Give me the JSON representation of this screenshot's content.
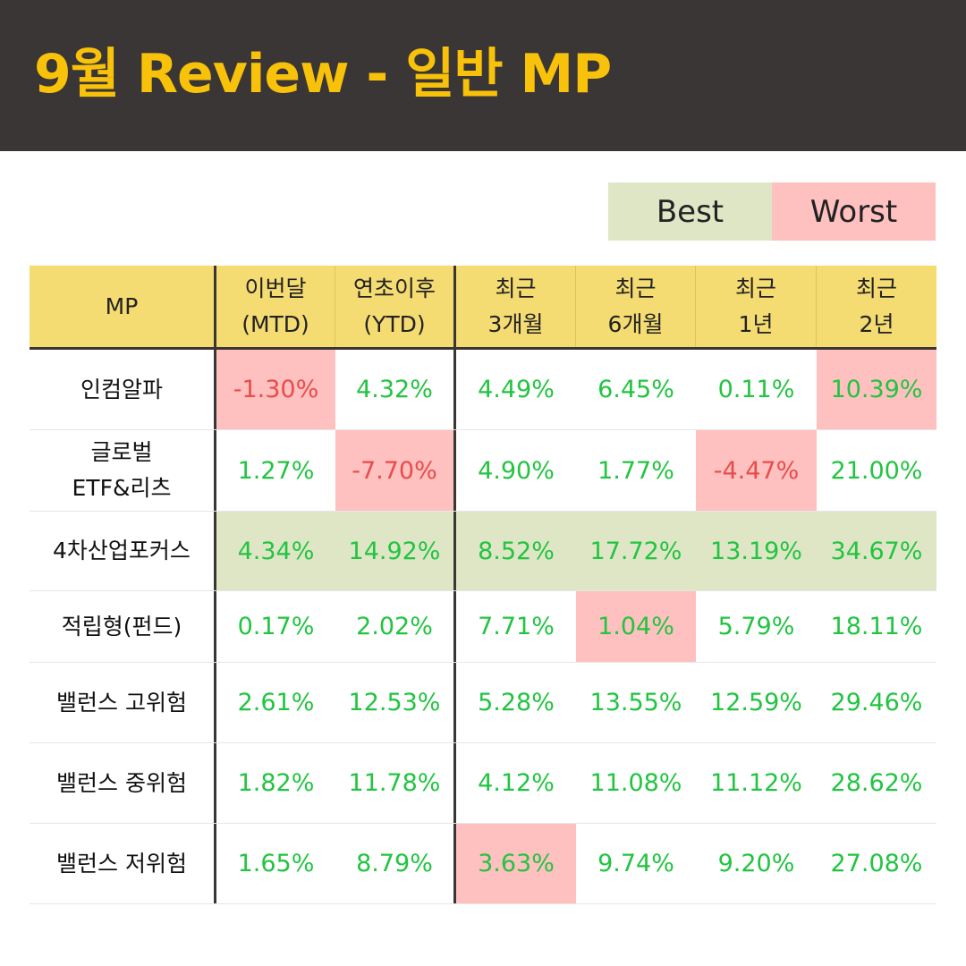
{
  "title": "9월 Review - 일반 MP",
  "legend": {
    "best": "Best",
    "worst": "Worst"
  },
  "colors": {
    "header_bg": "#3a3635",
    "title": "#f9c20a",
    "best": "#dfe6c6",
    "worst": "#ffc0c0",
    "table_header": "#f4dc72",
    "positive_text": "#22c441",
    "negative_text": "#e84c4c"
  },
  "table": {
    "headers": [
      [
        "MP"
      ],
      [
        "이번달",
        "(MTD)"
      ],
      [
        "연초이후",
        "(YTD)"
      ],
      [
        "최근",
        "3개월"
      ],
      [
        "최근",
        "6개월"
      ],
      [
        "최근",
        "1년"
      ],
      [
        "최근",
        "2년"
      ]
    ],
    "rows": [
      {
        "name": [
          "인컴알파"
        ],
        "values": [
          "-1.30%",
          "4.32%",
          "4.49%",
          "6.45%",
          "0.11%",
          "10.39%"
        ],
        "worst": [
          0,
          5
        ],
        "best_row": false
      },
      {
        "name": [
          "글로벌",
          "ETF&리츠"
        ],
        "values": [
          "1.27%",
          "-7.70%",
          "4.90%",
          "1.77%",
          "-4.47%",
          "21.00%"
        ],
        "worst": [
          1,
          4
        ],
        "best_row": false
      },
      {
        "name": [
          "4차산업포커스"
        ],
        "values": [
          "4.34%",
          "14.92%",
          "8.52%",
          "17.72%",
          "13.19%",
          "34.67%"
        ],
        "worst": [],
        "best_row": true
      },
      {
        "name": [
          "적립형(펀드)"
        ],
        "values": [
          "0.17%",
          "2.02%",
          "7.71%",
          "1.04%",
          "5.79%",
          "18.11%"
        ],
        "worst": [
          3
        ],
        "best_row": false
      },
      {
        "name": [
          "밸런스 고위험"
        ],
        "values": [
          "2.61%",
          "12.53%",
          "5.28%",
          "13.55%",
          "12.59%",
          "29.46%"
        ],
        "worst": [],
        "best_row": false
      },
      {
        "name": [
          "밸런스 중위험"
        ],
        "values": [
          "1.82%",
          "11.78%",
          "4.12%",
          "11.08%",
          "11.12%",
          "28.62%"
        ],
        "worst": [],
        "best_row": false
      },
      {
        "name": [
          "밸런스 저위험"
        ],
        "values": [
          "1.65%",
          "8.79%",
          "3.63%",
          "9.74%",
          "9.20%",
          "27.08%"
        ],
        "worst": [
          2
        ],
        "best_row": false
      }
    ]
  }
}
